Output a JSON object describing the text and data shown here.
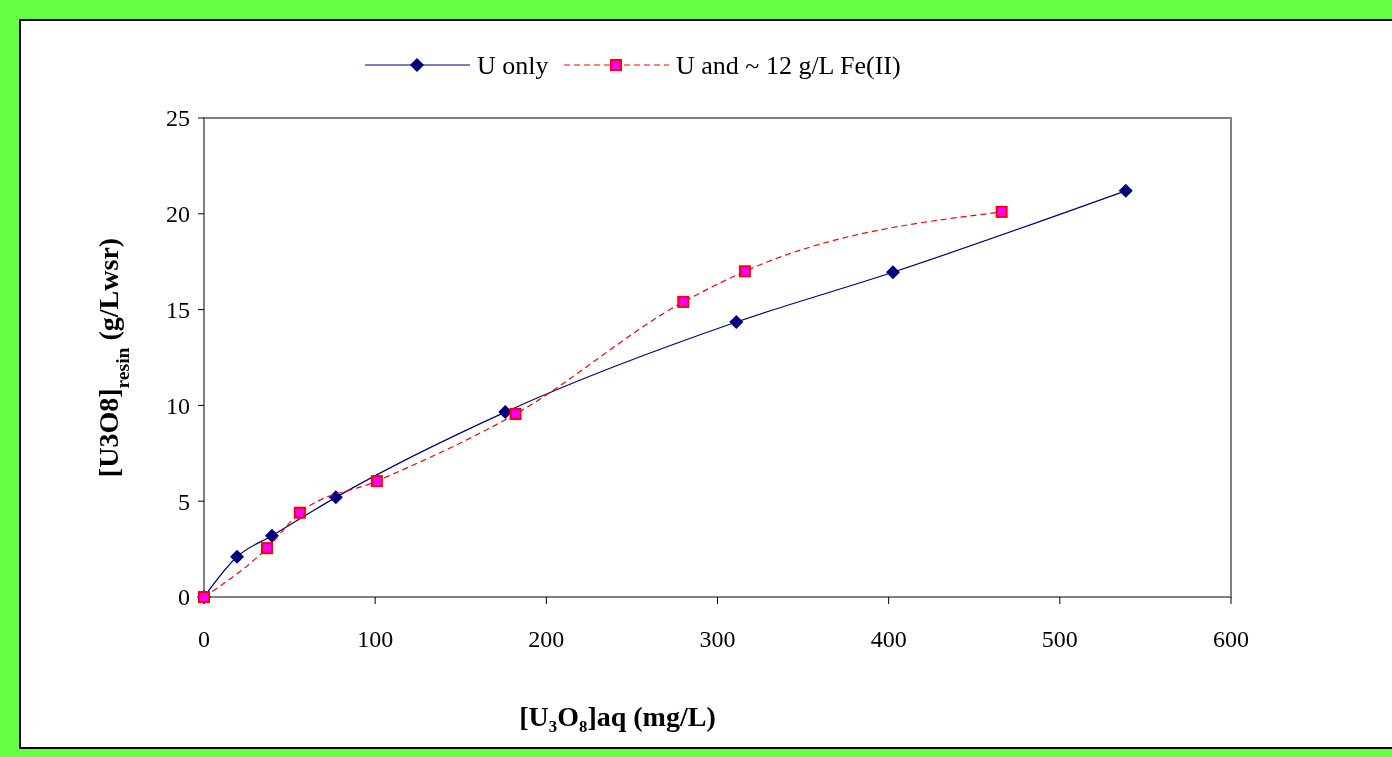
{
  "chart_data": {
    "type": "line",
    "xlabel": "[U₃O₈]aq (mg/L)",
    "ylabel": "[U3O8]$_{resin}$ (g/Lwsr)",
    "xlim": [
      0,
      600
    ],
    "xticks": [
      0,
      100,
      200,
      300,
      400,
      500,
      600
    ],
    "ylim": [
      0,
      25
    ],
    "yticks": [
      0,
      5,
      10,
      15,
      20,
      25
    ],
    "grid": false,
    "legend": "top",
    "series": [
      {
        "name": "U only",
        "color": "#000080",
        "marker": "diamond",
        "line_style": "solid",
        "x": [
          0,
          19.3,
          39.7,
          77,
          176,
          311,
          402.5,
          538.5
        ],
        "values": [
          0,
          2.1,
          3.2,
          5.2,
          9.65,
          14.35,
          16.95,
          21.2
        ]
      },
      {
        "name": "U and ~ 12 g/L Fe(II)",
        "color": "#ff0000",
        "marker": "square",
        "line_style": "dashed",
        "x": [
          0,
          36.8,
          56,
          101,
          182,
          280,
          316,
          466
        ],
        "values": [
          0,
          2.55,
          4.4,
          6.05,
          9.55,
          15.4,
          17.0,
          20.1
        ]
      }
    ]
  }
}
